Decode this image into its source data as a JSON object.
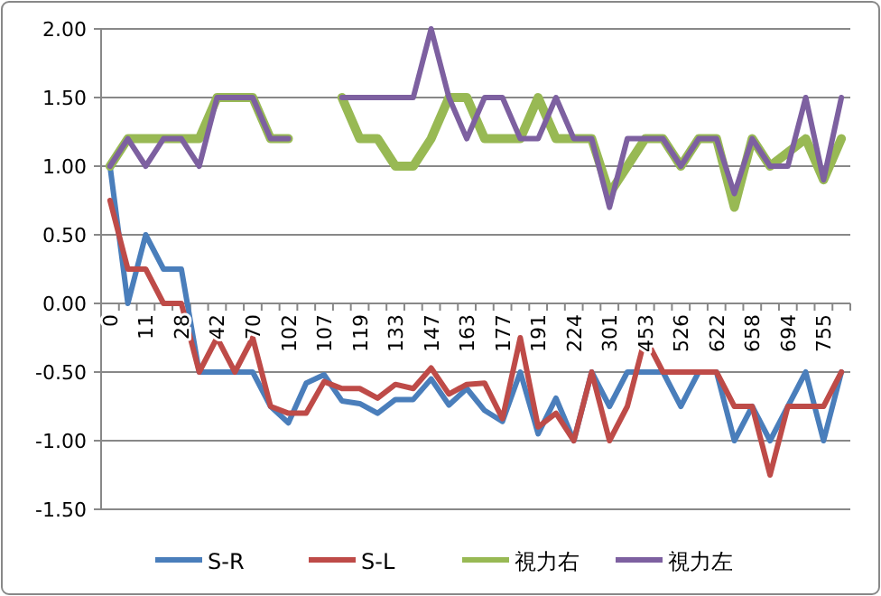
{
  "chart_data": {
    "type": "line",
    "categories": [
      "0",
      null,
      "11",
      null,
      "28",
      null,
      "42",
      null,
      "70",
      null,
      "102",
      null,
      "107",
      null,
      "119",
      null,
      "133",
      null,
      "147",
      null,
      "163",
      null,
      "177",
      null,
      "191",
      null,
      "224",
      null,
      "301",
      null,
      "453",
      null,
      "526",
      null,
      "622",
      null,
      "658",
      null,
      "694",
      null,
      "755",
      null
    ],
    "series": [
      {
        "name": "S-R",
        "color": "#4a7ebb",
        "values": [
          1.0,
          0.0,
          0.5,
          0.25,
          0.25,
          -0.5,
          -0.5,
          -0.5,
          -0.5,
          -0.75,
          -0.87,
          -0.58,
          -0.52,
          -0.71,
          -0.73,
          -0.8,
          -0.7,
          -0.7,
          -0.55,
          -0.74,
          -0.62,
          -0.78,
          -0.86,
          -0.5,
          -0.95,
          -0.69,
          -1.0,
          -0.5,
          -0.75,
          -0.5,
          -0.5,
          -0.5,
          -0.75,
          -0.5,
          -0.5,
          -1.0,
          -0.75,
          -1.0,
          -0.75,
          -0.5,
          -1.0,
          -0.5
        ]
      },
      {
        "name": "S-L",
        "color": "#be4b48",
        "values": [
          0.75,
          0.25,
          0.25,
          0.0,
          0.0,
          -0.5,
          -0.25,
          -0.5,
          -0.25,
          -0.75,
          -0.8,
          -0.8,
          -0.57,
          -0.62,
          -0.62,
          -0.69,
          -0.59,
          -0.62,
          -0.47,
          -0.66,
          -0.59,
          -0.58,
          -0.84,
          -0.25,
          -0.9,
          -0.8,
          -1.0,
          -0.5,
          -1.0,
          -0.75,
          -0.25,
          -0.5,
          -0.5,
          -0.5,
          -0.5,
          -0.75,
          -0.75,
          -1.25,
          -0.75,
          -0.75,
          -0.75,
          -0.5
        ]
      },
      {
        "name": "視力右",
        "color": "#98b954",
        "values": [
          1.0,
          1.2,
          1.2,
          1.2,
          1.2,
          1.2,
          1.5,
          1.5,
          1.5,
          1.2,
          1.2,
          null,
          null,
          1.5,
          1.2,
          1.2,
          1.0,
          1.0,
          1.2,
          1.5,
          1.5,
          1.2,
          1.2,
          1.2,
          1.5,
          1.2,
          1.2,
          1.2,
          0.8,
          1.0,
          1.2,
          1.2,
          1.0,
          1.2,
          1.2,
          0.7,
          1.2,
          1.0,
          1.1,
          1.2,
          0.9,
          1.2
        ]
      },
      {
        "name": "視力左",
        "color": "#7d60a0",
        "values": [
          1.0,
          1.2,
          1.0,
          1.2,
          1.2,
          1.0,
          1.5,
          1.5,
          1.5,
          1.2,
          1.2,
          null,
          null,
          1.5,
          1.5,
          1.5,
          1.5,
          1.5,
          2.0,
          1.5,
          1.2,
          1.5,
          1.5,
          1.2,
          1.2,
          1.5,
          1.2,
          1.2,
          0.7,
          1.2,
          1.2,
          1.2,
          1.0,
          1.2,
          1.2,
          0.8,
          1.2,
          1.0,
          1.0,
          1.5,
          0.9,
          1.5
        ]
      }
    ],
    "ylim": [
      -1.5,
      2
    ],
    "yticks": [
      {
        "value": -1.5,
        "label": "-1.50"
      },
      {
        "value": -1,
        "label": "-1.00"
      },
      {
        "value": -0.5,
        "label": "-0.50"
      },
      {
        "value": 0,
        "label": "0.00"
      },
      {
        "value": 0.5,
        "label": "0.50"
      },
      {
        "value": 1,
        "label": "1.00"
      },
      {
        "value": 1.5,
        "label": "1.50"
      },
      {
        "value": 2,
        "label": "2.00"
      }
    ],
    "grid": "y",
    "legend": "bottom",
    "marker": "none"
  }
}
